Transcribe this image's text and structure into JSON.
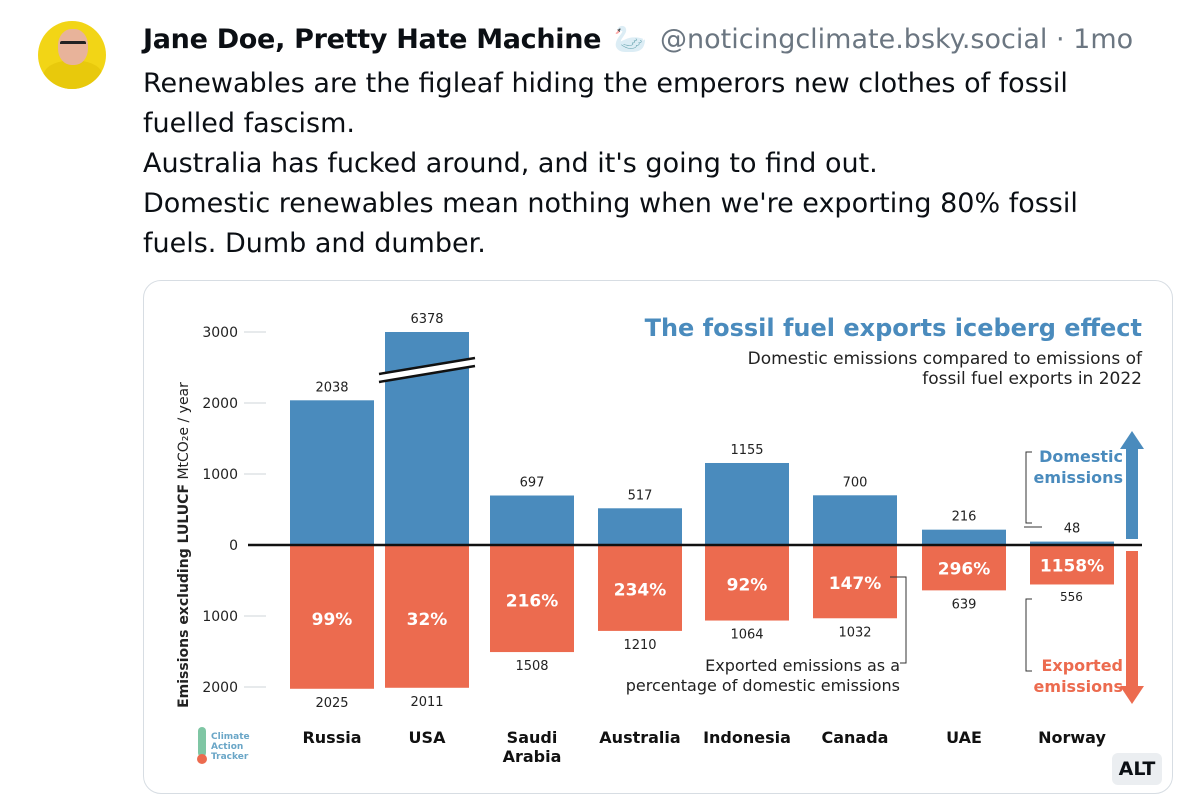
{
  "post": {
    "author_name": "Jane Doe, Pretty Hate Machine",
    "author_emoji": "🦢",
    "handle": "@noticingclimate.bsky.social",
    "separator": "·",
    "time": "1mo",
    "paragraphs": [
      "Renewables are the figleaf hiding the emperors new clothes of fossil fuelled fascism.",
      "Australia has fucked around, and it's going to find out.",
      "Domestic renewables mean nothing when we're exporting 80% fossil fuels. Dumb and dumber."
    ],
    "alt_badge": "ALT"
  },
  "colors": {
    "domestic": "#4a8bbd",
    "exported": "#ec6b4f",
    "title_blue": "#4a8bbd",
    "text_dark": "#0b0f14",
    "muted": "#6b7681"
  },
  "chart_data": {
    "type": "bar",
    "title": "The fossil fuel exports iceberg effect",
    "subtitle_lines": [
      "Domestic emissions compared to emissions of",
      "fossil fuel exports in 2022"
    ],
    "ylabel_bold": "Emissions excluding LULUCF",
    "ylabel_rest": " MtCO₂e / year",
    "y_ticks": [
      {
        "value": 3000,
        "label": "3000"
      },
      {
        "value": 2000,
        "label": "2000"
      },
      {
        "value": 1000,
        "label": "1000"
      },
      {
        "value": 0,
        "label": "0"
      },
      {
        "value": -1000,
        "label": "1000"
      },
      {
        "value": -2000,
        "label": "2000"
      }
    ],
    "ylim": [
      -2000,
      3000
    ],
    "categories": [
      {
        "lines": [
          "Russia"
        ]
      },
      {
        "lines": [
          "USA"
        ]
      },
      {
        "lines": [
          "Saudi",
          "Arabia"
        ]
      },
      {
        "lines": [
          "Australia"
        ]
      },
      {
        "lines": [
          "Indonesia"
        ]
      },
      {
        "lines": [
          "Canada"
        ]
      },
      {
        "lines": [
          "UAE"
        ]
      },
      {
        "lines": [
          "Norway"
        ]
      }
    ],
    "series": [
      {
        "key": "domestic",
        "values": [
          2038,
          6378,
          697,
          517,
          1155,
          700,
          216,
          48
        ],
        "labels": [
          "2038",
          "6378",
          "697",
          "517",
          "1155",
          "700",
          "216",
          "48"
        ]
      },
      {
        "key": "exported",
        "values": [
          2025,
          2011,
          1508,
          1210,
          1064,
          1032,
          639,
          556
        ],
        "labels": [
          "2025",
          "2011",
          "1508",
          "1210",
          "1064",
          "1032",
          "639",
          "556"
        ]
      }
    ],
    "export_percentages": [
      "99%",
      "32%",
      "216%",
      "234%",
      "92%",
      "147%",
      "296%",
      "1158%"
    ],
    "axis_break": {
      "category": "USA"
    },
    "legend_domestic": [
      "Domestic",
      "emissions"
    ],
    "legend_exported": [
      "Exported",
      "emissions"
    ],
    "annotation_lines": [
      "Exported emissions as a",
      "percentage of domestic emissions"
    ],
    "logo_lines": [
      "Climate",
      "Action",
      "Tracker"
    ]
  }
}
